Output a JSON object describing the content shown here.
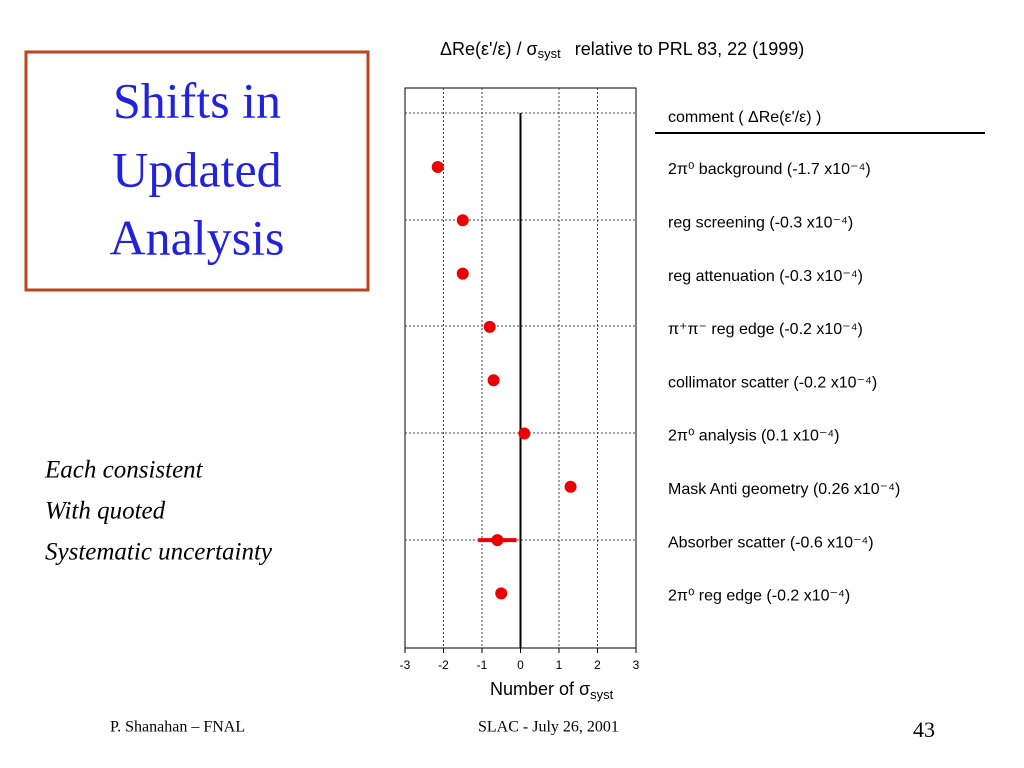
{
  "slide": {
    "title_lines": [
      "Shifts in",
      "Updated",
      "Analysis"
    ],
    "notes": [
      "Each consistent",
      "With quoted",
      "Systematic uncertainty"
    ],
    "footer_left": "P. Shanahan – FNAL",
    "footer_center": "SLAC  -  July 26, 2001",
    "page_number": "43"
  },
  "chart_data": {
    "type": "scatter",
    "title": [
      "ΔRe(ε'/ε) / σ",
      "syst",
      "relative to PRL 83, 22 (1999)"
    ],
    "xlabel": [
      "Number of σ",
      "syst"
    ],
    "legend_header": "comment    ( ΔRe(ε'/ε) )",
    "categories": [
      "2π⁰ background  (-1.7 x10⁻⁴)",
      "reg screening  (-0.3 x10⁻⁴)",
      "reg attenuation  (-0.3 x10⁻⁴)",
      "π⁺π⁻ reg edge  (-0.2 x10⁻⁴)",
      "collimator scatter  (-0.2 x10⁻⁴)",
      "2π⁰ analysis  (0.1 x10⁻⁴)",
      "Mask Anti geometry  (0.26 x10⁻⁴)",
      "Absorber scatter  (-0.6 x10⁻⁴)",
      "2π⁰ reg edge  (-0.2 x10⁻⁴)"
    ],
    "values": [
      -2.15,
      -1.5,
      -1.5,
      -0.8,
      -0.7,
      0.1,
      1.3,
      -0.6,
      -0.5
    ],
    "errors": [
      null,
      null,
      null,
      null,
      null,
      null,
      null,
      0.5,
      null
    ],
    "color": "#ee0000",
    "xlim": [
      -3,
      3
    ],
    "xticks": [
      -3,
      -2,
      -1,
      0,
      1,
      2,
      3
    ],
    "grid": true
  }
}
